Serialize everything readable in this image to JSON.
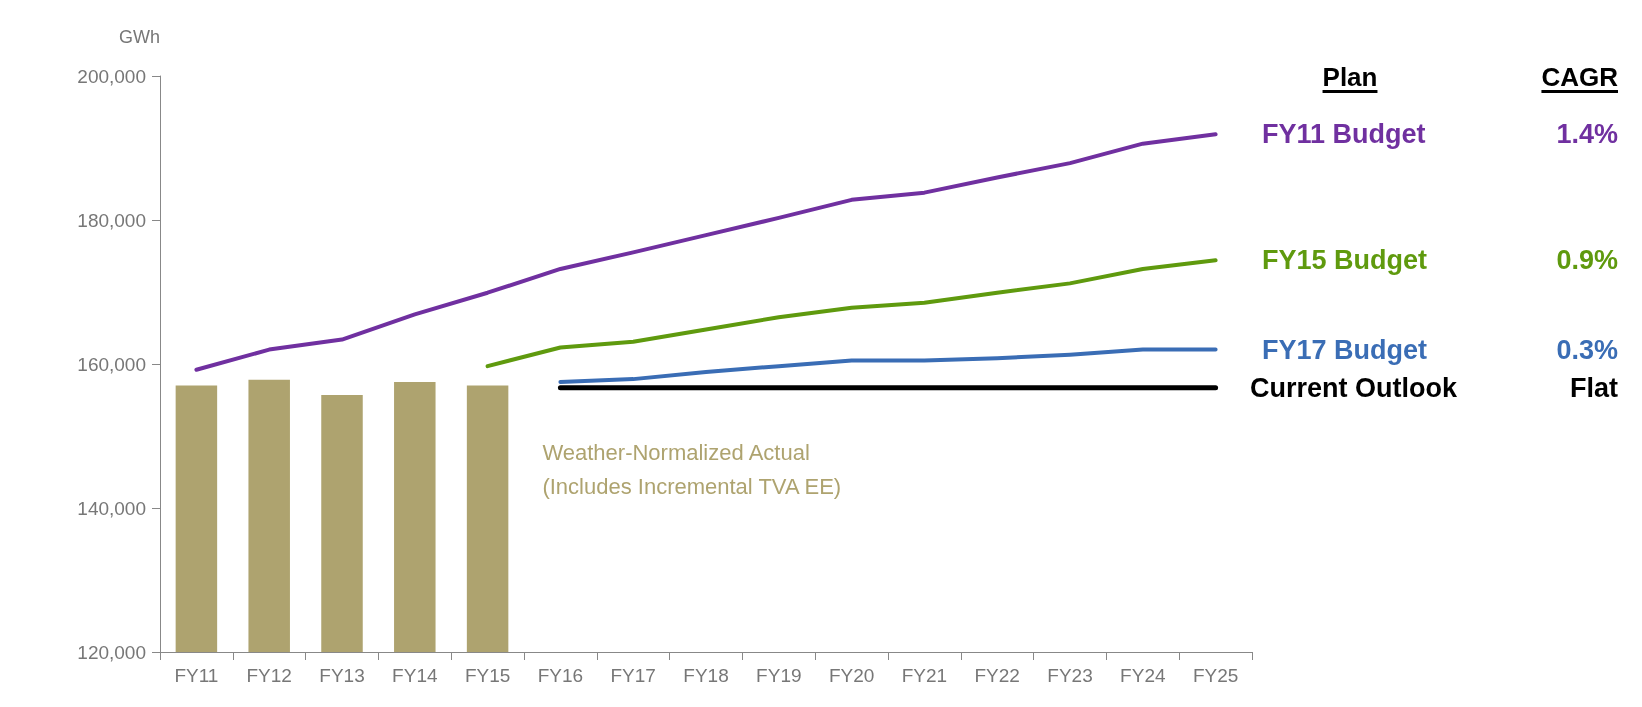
{
  "chart_data": {
    "type": "line",
    "ylabel": "GWh",
    "categories": [
      "FY11",
      "FY12",
      "FY13",
      "FY14",
      "FY15",
      "FY16",
      "FY17",
      "FY18",
      "FY19",
      "FY20",
      "FY21",
      "FY22",
      "FY23",
      "FY24",
      "FY25"
    ],
    "series": [
      {
        "name": "Weather-Normalized Actual\n(Includes Incremental TVA EE)",
        "type": "bar",
        "color": "#aea36f",
        "values": [
          157000,
          157800,
          155700,
          157500,
          157000,
          null,
          null,
          null,
          null,
          null,
          null,
          null,
          null,
          null,
          null
        ]
      },
      {
        "name": "FY11 Budget",
        "color": "#7030a0",
        "values": [
          159200,
          162000,
          163400,
          166900,
          169900,
          173200,
          175500,
          177900,
          180300,
          182800,
          183800,
          185900,
          187900,
          190600,
          191900
        ]
      },
      {
        "name": "FY15 Budget",
        "color": "#5f9a0e",
        "values": [
          null,
          null,
          null,
          null,
          159700,
          162300,
          163100,
          164800,
          166500,
          167800,
          168500,
          169900,
          171200,
          173200,
          174400
        ]
      },
      {
        "name": "FY17 Budget",
        "color": "#3a6db5",
        "values": [
          null,
          null,
          null,
          null,
          null,
          157500,
          157900,
          158900,
          159700,
          160500,
          160500,
          160800,
          161300,
          162000,
          162000
        ]
      },
      {
        "name": "Current Outlook",
        "color": "#000000",
        "values": [
          null,
          null,
          null,
          null,
          null,
          156700,
          156700,
          156700,
          156700,
          156700,
          156700,
          156700,
          156700,
          156700,
          156700
        ]
      }
    ],
    "annotations": [
      "Plan",
      "CAGR",
      "1.4%",
      "0.9%",
      "0.3%",
      "Flat"
    ],
    "ylim": [
      120000,
      200000
    ],
    "yticks": [
      {
        "value": 120000,
        "label": "120,000"
      },
      {
        "value": 140000,
        "label": "140,000"
      },
      {
        "value": 160000,
        "label": "160,000"
      },
      {
        "value": 180000,
        "label": "180,000"
      },
      {
        "value": 200000,
        "label": "200,000"
      }
    ],
    "legend": "right",
    "grid": false,
    "marker": "none",
    "line_style": "solid"
  }
}
